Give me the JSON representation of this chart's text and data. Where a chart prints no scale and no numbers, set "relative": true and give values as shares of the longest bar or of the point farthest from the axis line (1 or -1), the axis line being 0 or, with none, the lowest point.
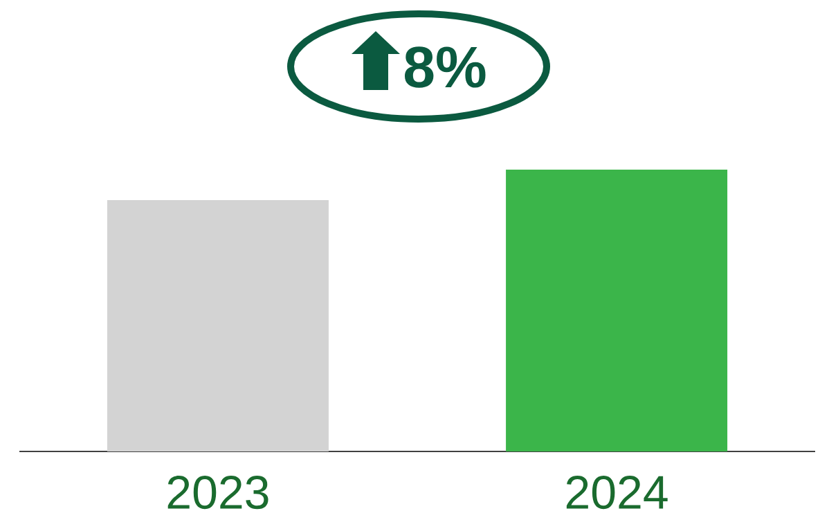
{
  "chart_data": {
    "type": "bar",
    "relative": true,
    "categories": [
      "2023",
      "2024"
    ],
    "values": [
      0.892,
      1
    ],
    "colors": [
      "#d3d3d3",
      "#3bb54a"
    ],
    "annotations": [
      "8%"
    ]
  }
}
